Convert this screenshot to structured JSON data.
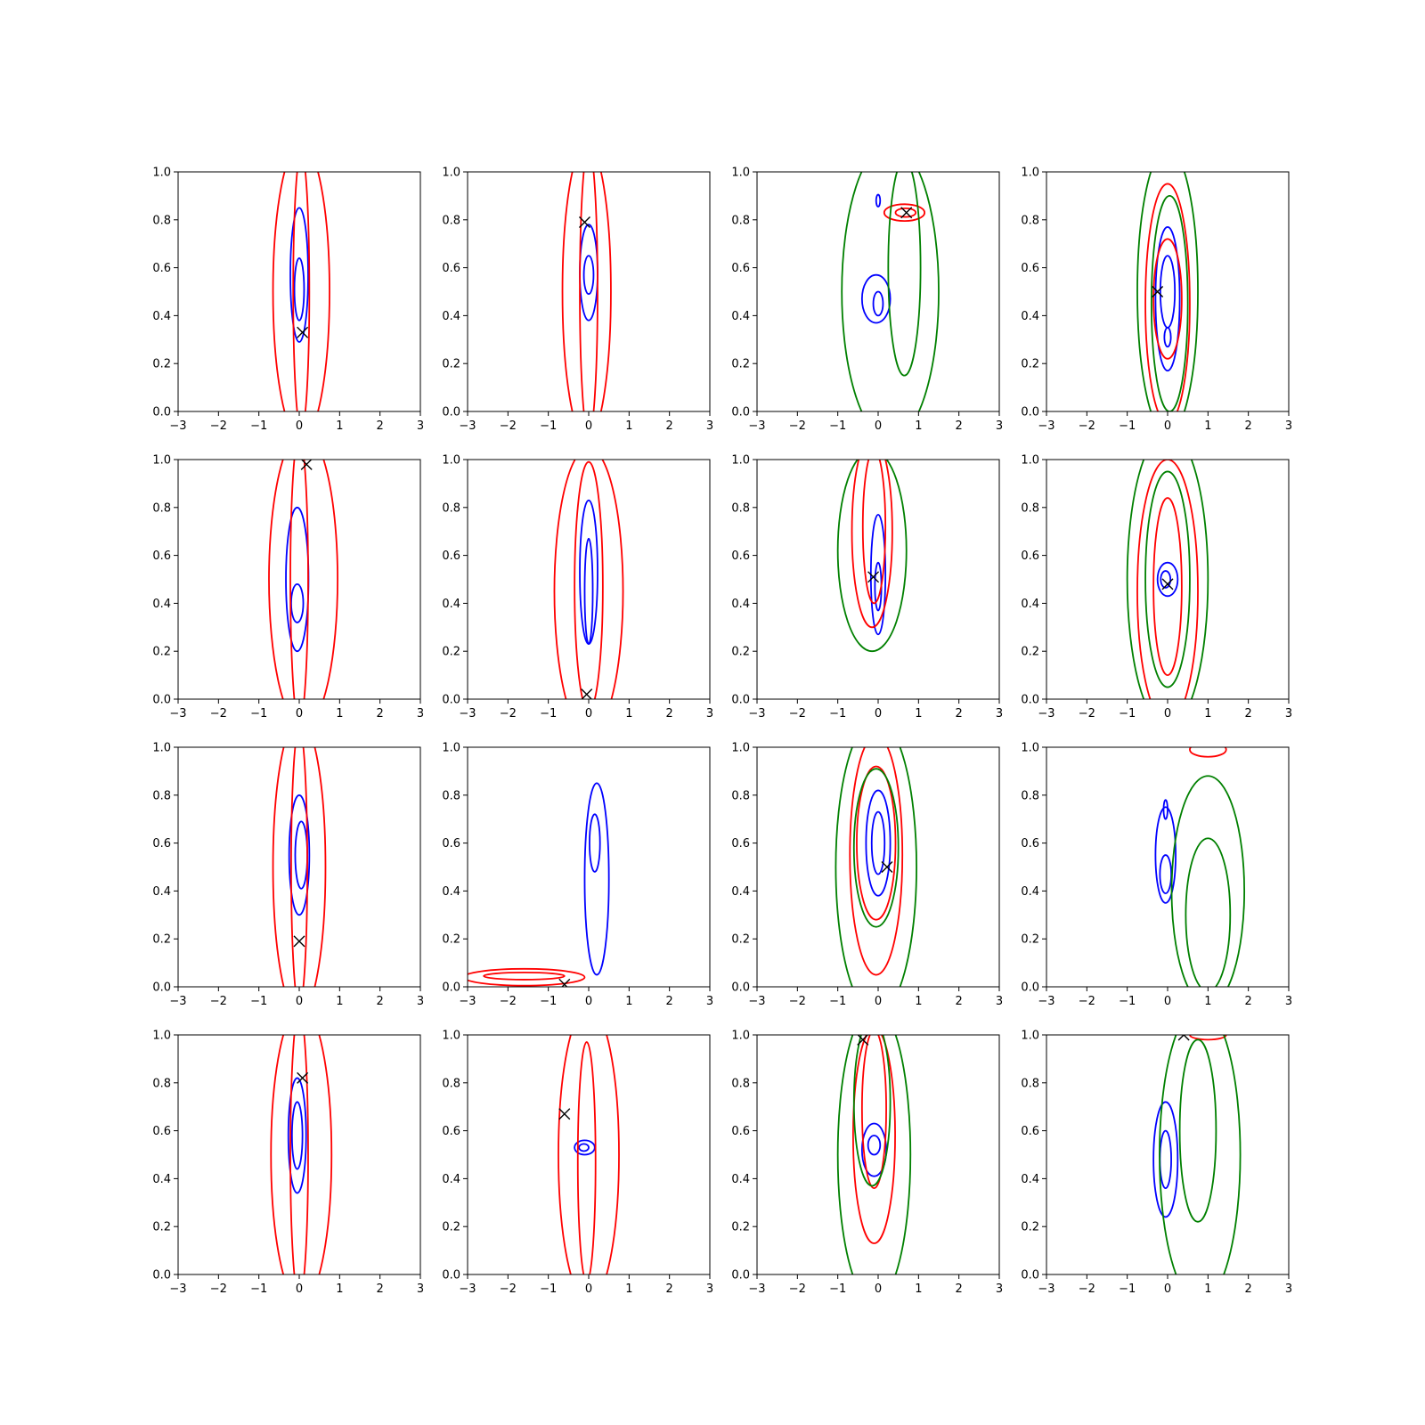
{
  "figure": {
    "rows": 4,
    "cols": 4,
    "colors": {
      "blue": "#0000ff",
      "red": "#ff0000",
      "green": "#008000",
      "marker": "#000000",
      "axis": "#000000"
    }
  },
  "chart_data": {
    "type": "contour",
    "grid": "4x4",
    "xlim": [
      -3,
      3
    ],
    "ylim": [
      0,
      1
    ],
    "xticks": [
      -3,
      -2,
      -1,
      0,
      1,
      2,
      3
    ],
    "xtick_labels": [
      "−3",
      "−2",
      "−1",
      "0",
      "1",
      "2",
      "3"
    ],
    "yticks": [
      0,
      0.2,
      0.4,
      0.6,
      0.8,
      1.0
    ],
    "ytick_labels": [
      "0.0",
      "0.2",
      "0.4",
      "0.6",
      "0.8",
      "1.0"
    ],
    "grid_lines": false,
    "legend": false,
    "panels": [
      {
        "row": 0,
        "col": 0,
        "marker": [
          0.08,
          0.33
        ],
        "contours": [
          {
            "color": "blue",
            "cx": 0.0,
            "cy": 0.57,
            "rx": 0.22,
            "ry": 0.28
          },
          {
            "color": "blue",
            "cx": 0.0,
            "cy": 0.51,
            "rx": 0.12,
            "ry": 0.13
          },
          {
            "color": "red",
            "cx": 0.05,
            "cy": 0.5,
            "rx": 0.2,
            "ry": 0.58
          },
          {
            "color": "red",
            "cx": 0.05,
            "cy": 0.5,
            "rx": 0.7,
            "ry": 0.62
          }
        ]
      },
      {
        "row": 0,
        "col": 1,
        "marker": [
          -0.1,
          0.79
        ],
        "contours": [
          {
            "color": "blue",
            "cx": 0.0,
            "cy": 0.58,
            "rx": 0.22,
            "ry": 0.2
          },
          {
            "color": "blue",
            "cx": 0.0,
            "cy": 0.57,
            "rx": 0.12,
            "ry": 0.08
          },
          {
            "color": "red",
            "cx": 0.0,
            "cy": 0.5,
            "rx": 0.22,
            "ry": 0.6
          },
          {
            "color": "red",
            "cx": -0.05,
            "cy": 0.5,
            "rx": 0.6,
            "ry": 0.62
          }
        ]
      },
      {
        "row": 0,
        "col": 2,
        "marker": [
          0.7,
          0.83
        ],
        "contours": [
          {
            "color": "blue",
            "cx": -0.05,
            "cy": 0.47,
            "rx": 0.35,
            "ry": 0.1
          },
          {
            "color": "blue",
            "cx": 0.0,
            "cy": 0.45,
            "rx": 0.12,
            "ry": 0.05
          },
          {
            "color": "blue",
            "cx": 0.0,
            "cy": 0.88,
            "rx": 0.05,
            "ry": 0.025
          },
          {
            "color": "red",
            "cx": 0.65,
            "cy": 0.83,
            "rx": 0.5,
            "ry": 0.035
          },
          {
            "color": "red",
            "cx": 0.68,
            "cy": 0.83,
            "rx": 0.25,
            "ry": 0.018
          },
          {
            "color": "green",
            "cx": 0.65,
            "cy": 0.6,
            "rx": 0.4,
            "ry": 0.45
          },
          {
            "color": "green",
            "cx": 0.3,
            "cy": 0.5,
            "rx": 1.2,
            "ry": 0.62
          }
        ]
      },
      {
        "row": 0,
        "col": 3,
        "marker": [
          -0.25,
          0.5
        ],
        "contours": [
          {
            "color": "blue",
            "cx": 0.0,
            "cy": 0.47,
            "rx": 0.3,
            "ry": 0.3
          },
          {
            "color": "blue",
            "cx": 0.0,
            "cy": 0.5,
            "rx": 0.18,
            "ry": 0.15
          },
          {
            "color": "blue",
            "cx": 0.0,
            "cy": 0.31,
            "rx": 0.08,
            "ry": 0.04
          },
          {
            "color": "red",
            "cx": 0.0,
            "cy": 0.45,
            "rx": 0.55,
            "ry": 0.5
          },
          {
            "color": "red",
            "cx": 0.0,
            "cy": 0.47,
            "rx": 0.35,
            "ry": 0.25
          },
          {
            "color": "green",
            "cx": 0.0,
            "cy": 0.5,
            "rx": 0.75,
            "ry": 0.6
          },
          {
            "color": "green",
            "cx": 0.05,
            "cy": 0.45,
            "rx": 0.45,
            "ry": 0.45
          }
        ]
      },
      {
        "row": 1,
        "col": 0,
        "marker": [
          0.18,
          0.98
        ],
        "contours": [
          {
            "color": "blue",
            "cx": -0.05,
            "cy": 0.5,
            "rx": 0.28,
            "ry": 0.3
          },
          {
            "color": "blue",
            "cx": -0.05,
            "cy": 0.4,
            "rx": 0.15,
            "ry": 0.08
          },
          {
            "color": "red",
            "cx": 0.0,
            "cy": 0.5,
            "rx": 0.22,
            "ry": 0.6
          },
          {
            "color": "red",
            "cx": 0.1,
            "cy": 0.5,
            "rx": 0.85,
            "ry": 0.62
          }
        ]
      },
      {
        "row": 1,
        "col": 1,
        "marker": [
          -0.05,
          0.02
        ],
        "contours": [
          {
            "color": "blue",
            "cx": 0.0,
            "cy": 0.53,
            "rx": 0.22,
            "ry": 0.3
          },
          {
            "color": "blue",
            "cx": 0.0,
            "cy": 0.45,
            "rx": 0.1,
            "ry": 0.22
          },
          {
            "color": "red",
            "cx": 0.0,
            "cy": 0.47,
            "rx": 0.35,
            "ry": 0.52
          },
          {
            "color": "red",
            "cx": 0.0,
            "cy": 0.45,
            "rx": 0.85,
            "ry": 0.6
          }
        ]
      },
      {
        "row": 1,
        "col": 2,
        "marker": [
          -0.12,
          0.51
        ],
        "contours": [
          {
            "color": "blue",
            "cx": 0.0,
            "cy": 0.52,
            "rx": 0.18,
            "ry": 0.25
          },
          {
            "color": "blue",
            "cx": 0.0,
            "cy": 0.47,
            "rx": 0.08,
            "ry": 0.1
          },
          {
            "color": "red",
            "cx": -0.15,
            "cy": 0.7,
            "rx": 0.5,
            "ry": 0.4
          },
          {
            "color": "red",
            "cx": -0.1,
            "cy": 0.72,
            "rx": 0.28,
            "ry": 0.32
          },
          {
            "color": "green",
            "cx": -0.15,
            "cy": 0.62,
            "rx": 0.85,
            "ry": 0.42
          }
        ]
      },
      {
        "row": 1,
        "col": 3,
        "marker": [
          0.0,
          0.48
        ],
        "contours": [
          {
            "color": "blue",
            "cx": 0.0,
            "cy": 0.5,
            "rx": 0.25,
            "ry": 0.07
          },
          {
            "color": "blue",
            "cx": -0.05,
            "cy": 0.5,
            "rx": 0.12,
            "ry": 0.035
          },
          {
            "color": "red",
            "cx": 0.0,
            "cy": 0.47,
            "rx": 0.35,
            "ry": 0.37
          },
          {
            "color": "red",
            "cx": 0.0,
            "cy": 0.45,
            "rx": 0.75,
            "ry": 0.55
          },
          {
            "color": "green",
            "cx": 0.0,
            "cy": 0.5,
            "rx": 0.55,
            "ry": 0.45
          },
          {
            "color": "green",
            "cx": 0.0,
            "cy": 0.5,
            "rx": 1.0,
            "ry": 0.62
          }
        ]
      },
      {
        "row": 2,
        "col": 0,
        "marker": [
          0.0,
          0.19
        ],
        "contours": [
          {
            "color": "blue",
            "cx": 0.0,
            "cy": 0.55,
            "rx": 0.25,
            "ry": 0.25
          },
          {
            "color": "blue",
            "cx": 0.05,
            "cy": 0.55,
            "rx": 0.15,
            "ry": 0.14
          },
          {
            "color": "red",
            "cx": 0.0,
            "cy": 0.5,
            "rx": 0.2,
            "ry": 0.58
          },
          {
            "color": "red",
            "cx": 0.0,
            "cy": 0.5,
            "rx": 0.65,
            "ry": 0.62
          }
        ]
      },
      {
        "row": 2,
        "col": 1,
        "marker": [
          -0.6,
          0.01
        ],
        "contours": [
          {
            "color": "blue",
            "cx": 0.2,
            "cy": 0.45,
            "rx": 0.3,
            "ry": 0.4
          },
          {
            "color": "blue",
            "cx": 0.15,
            "cy": 0.6,
            "rx": 0.13,
            "ry": 0.12
          },
          {
            "color": "red",
            "cx": -1.6,
            "cy": 0.04,
            "rx": 1.5,
            "ry": 0.035
          },
          {
            "color": "red",
            "cx": -1.6,
            "cy": 0.045,
            "rx": 1.0,
            "ry": 0.015
          }
        ]
      },
      {
        "row": 2,
        "col": 2,
        "marker": [
          0.22,
          0.5
        ],
        "contours": [
          {
            "color": "blue",
            "cx": 0.0,
            "cy": 0.6,
            "rx": 0.3,
            "ry": 0.22
          },
          {
            "color": "blue",
            "cx": 0.0,
            "cy": 0.6,
            "rx": 0.16,
            "ry": 0.13
          },
          {
            "color": "red",
            "cx": -0.05,
            "cy": 0.6,
            "rx": 0.48,
            "ry": 0.32
          },
          {
            "color": "red",
            "cx": -0.05,
            "cy": 0.55,
            "rx": 0.65,
            "ry": 0.5
          },
          {
            "color": "green",
            "cx": -0.05,
            "cy": 0.58,
            "rx": 0.55,
            "ry": 0.33
          },
          {
            "color": "green",
            "cx": -0.05,
            "cy": 0.5,
            "rx": 1.0,
            "ry": 0.62
          }
        ]
      },
      {
        "row": 2,
        "col": 3,
        "marker": null,
        "contours": [
          {
            "color": "blue",
            "cx": -0.05,
            "cy": 0.55,
            "rx": 0.25,
            "ry": 0.2
          },
          {
            "color": "blue",
            "cx": -0.05,
            "cy": 0.47,
            "rx": 0.14,
            "ry": 0.08
          },
          {
            "color": "blue",
            "cx": -0.05,
            "cy": 0.74,
            "rx": 0.05,
            "ry": 0.04
          },
          {
            "color": "red",
            "cx": 1.0,
            "cy": 0.99,
            "rx": 0.45,
            "ry": 0.03
          },
          {
            "color": "green",
            "cx": 1.0,
            "cy": 0.3,
            "rx": 0.55,
            "ry": 0.32
          },
          {
            "color": "green",
            "cx": 1.0,
            "cy": 0.4,
            "rx": 0.9,
            "ry": 0.48
          }
        ]
      },
      {
        "row": 3,
        "col": 0,
        "marker": [
          0.08,
          0.82
        ],
        "contours": [
          {
            "color": "blue",
            "cx": -0.05,
            "cy": 0.58,
            "rx": 0.22,
            "ry": 0.24
          },
          {
            "color": "blue",
            "cx": -0.05,
            "cy": 0.58,
            "rx": 0.13,
            "ry": 0.14
          },
          {
            "color": "red",
            "cx": 0.0,
            "cy": 0.5,
            "rx": 0.22,
            "ry": 0.6
          },
          {
            "color": "red",
            "cx": 0.05,
            "cy": 0.5,
            "rx": 0.75,
            "ry": 0.62
          }
        ]
      },
      {
        "row": 3,
        "col": 1,
        "marker": [
          -0.6,
          0.67
        ],
        "contours": [
          {
            "color": "blue",
            "cx": -0.1,
            "cy": 0.53,
            "rx": 0.25,
            "ry": 0.03
          },
          {
            "color": "blue",
            "cx": -0.12,
            "cy": 0.53,
            "rx": 0.12,
            "ry": 0.015
          },
          {
            "color": "red",
            "cx": -0.05,
            "cy": 0.47,
            "rx": 0.22,
            "ry": 0.5
          },
          {
            "color": "red",
            "cx": 0.0,
            "cy": 0.5,
            "rx": 0.75,
            "ry": 0.62
          }
        ]
      },
      {
        "row": 3,
        "col": 2,
        "marker": [
          -0.38,
          0.98
        ],
        "contours": [
          {
            "color": "blue",
            "cx": -0.1,
            "cy": 0.52,
            "rx": 0.3,
            "ry": 0.11
          },
          {
            "color": "blue",
            "cx": -0.1,
            "cy": 0.54,
            "rx": 0.15,
            "ry": 0.04
          },
          {
            "color": "red",
            "cx": -0.1,
            "cy": 0.69,
            "rx": 0.3,
            "ry": 0.33
          },
          {
            "color": "red",
            "cx": -0.1,
            "cy": 0.58,
            "rx": 0.52,
            "ry": 0.45
          },
          {
            "color": "green",
            "cx": -0.15,
            "cy": 0.72,
            "rx": 0.45,
            "ry": 0.35
          },
          {
            "color": "green",
            "cx": -0.1,
            "cy": 0.5,
            "rx": 0.9,
            "ry": 0.62
          }
        ]
      },
      {
        "row": 3,
        "col": 3,
        "marker": [
          0.4,
          1.0
        ],
        "contours": [
          {
            "color": "blue",
            "cx": -0.05,
            "cy": 0.48,
            "rx": 0.3,
            "ry": 0.24
          },
          {
            "color": "blue",
            "cx": -0.05,
            "cy": 0.48,
            "rx": 0.14,
            "ry": 0.12
          },
          {
            "color": "red",
            "cx": 1.0,
            "cy": 1.0,
            "rx": 0.45,
            "ry": 0.02
          },
          {
            "color": "green",
            "cx": 0.75,
            "cy": 0.6,
            "rx": 0.45,
            "ry": 0.38
          },
          {
            "color": "green",
            "cx": 0.8,
            "cy": 0.5,
            "rx": 1.0,
            "ry": 0.62
          }
        ]
      }
    ]
  }
}
